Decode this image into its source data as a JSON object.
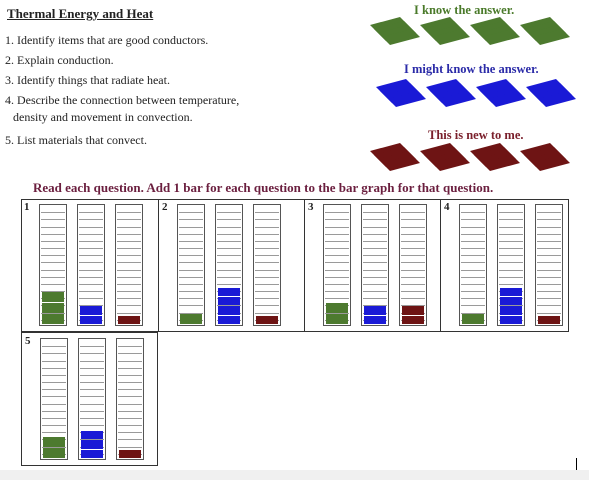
{
  "title": "Thermal Energy and Heat",
  "objectives": [
    "1. Identify items that are good conductors.",
    "2. Explain conduction.",
    "3. Identify things that radiate heat.",
    "4. Describe the connection between temperature,",
    "density and movement in convection.",
    "5. List materials that convect."
  ],
  "key": [
    {
      "label": "I know the answer.",
      "color": "#4d7a2f"
    },
    {
      "label": "I might know the answer.",
      "color": "#1a1ad6"
    },
    {
      "label": "This is new to me.",
      "color": "#6e1414"
    }
  ],
  "instructions": "Read each question. Add 1 bar for each question to the bar graph for that question.",
  "questions": [
    {
      "number": "1",
      "counts": {
        "know": 3,
        "might": 2,
        "new": 1
      }
    },
    {
      "number": "2",
      "counts": {
        "know": 1,
        "might": 4,
        "new": 1
      }
    },
    {
      "number": "3",
      "counts": {
        "know": 2,
        "might": 2,
        "new": 2
      }
    },
    {
      "number": "4",
      "counts": {
        "know": 1,
        "might": 4,
        "new": 1
      }
    },
    {
      "number": "5",
      "counts": {
        "know": 2,
        "might": 3,
        "new": 1
      }
    }
  ],
  "colors": {
    "know": "#4d7a2f",
    "might": "#1a1ad6",
    "new": "#6e1414",
    "instructions": "#6b1f3f"
  }
}
